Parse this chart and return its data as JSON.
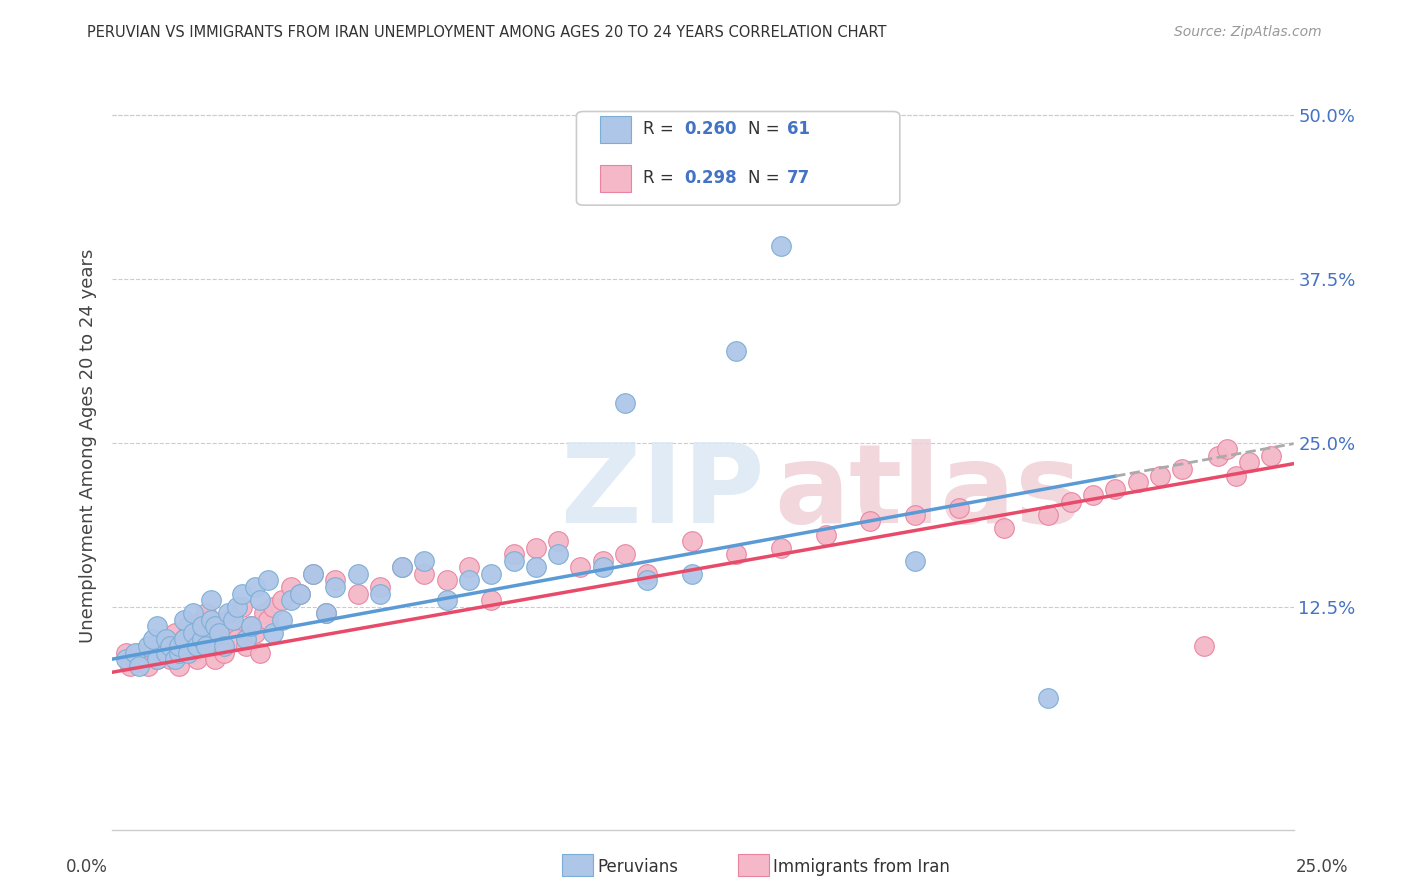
{
  "title": "PERUVIAN VS IMMIGRANTS FROM IRAN UNEMPLOYMENT AMONG AGES 20 TO 24 YEARS CORRELATION CHART",
  "source": "Source: ZipAtlas.com",
  "ylabel": "Unemployment Among Ages 20 to 24 years",
  "yticks_labels": [
    "12.5%",
    "25.0%",
    "37.5%",
    "50.0%"
  ],
  "ytick_vals": [
    0.125,
    0.25,
    0.375,
    0.5
  ],
  "xlim": [
    0.0,
    0.265
  ],
  "ylim": [
    -0.045,
    0.54
  ],
  "series1_color": "#aec6e8",
  "series2_color": "#f4b8c8",
  "series1_edge": "#7baed4",
  "series2_edge": "#e884a0",
  "line1_color": "#5b9bd5",
  "line2_color": "#e84b6a",
  "line1_intercept": 0.085,
  "line1_slope": 0.62,
  "line2_intercept": 0.075,
  "line2_slope": 0.6,
  "dashed_line_color": "#aaaaaa",
  "grid_color": "#cccccc",
  "title_color": "#333333",
  "source_color": "#999999",
  "tick_color": "#4472c4",
  "watermark_zip_color": "#dce8f5",
  "watermark_atlas_color": "#f0d0d8",
  "peruvian_x": [
    0.003,
    0.005,
    0.006,
    0.008,
    0.009,
    0.01,
    0.01,
    0.012,
    0.012,
    0.013,
    0.014,
    0.015,
    0.015,
    0.016,
    0.016,
    0.017,
    0.018,
    0.018,
    0.019,
    0.02,
    0.02,
    0.021,
    0.022,
    0.022,
    0.023,
    0.024,
    0.025,
    0.026,
    0.027,
    0.028,
    0.029,
    0.03,
    0.031,
    0.032,
    0.033,
    0.035,
    0.036,
    0.038,
    0.04,
    0.042,
    0.045,
    0.048,
    0.05,
    0.055,
    0.06,
    0.065,
    0.07,
    0.075,
    0.08,
    0.085,
    0.09,
    0.095,
    0.1,
    0.11,
    0.115,
    0.12,
    0.13,
    0.14,
    0.15,
    0.18,
    0.21
  ],
  "peruvian_y": [
    0.085,
    0.09,
    0.08,
    0.095,
    0.1,
    0.085,
    0.11,
    0.09,
    0.1,
    0.095,
    0.085,
    0.09,
    0.095,
    0.1,
    0.115,
    0.09,
    0.105,
    0.12,
    0.095,
    0.1,
    0.11,
    0.095,
    0.13,
    0.115,
    0.11,
    0.105,
    0.095,
    0.12,
    0.115,
    0.125,
    0.135,
    0.1,
    0.11,
    0.14,
    0.13,
    0.145,
    0.105,
    0.115,
    0.13,
    0.135,
    0.15,
    0.12,
    0.14,
    0.15,
    0.135,
    0.155,
    0.16,
    0.13,
    0.145,
    0.15,
    0.16,
    0.155,
    0.165,
    0.155,
    0.28,
    0.145,
    0.15,
    0.32,
    0.4,
    0.16,
    0.055
  ],
  "iran_x": [
    0.003,
    0.004,
    0.005,
    0.006,
    0.008,
    0.009,
    0.01,
    0.011,
    0.012,
    0.013,
    0.014,
    0.015,
    0.015,
    0.016,
    0.017,
    0.018,
    0.018,
    0.019,
    0.02,
    0.02,
    0.021,
    0.022,
    0.023,
    0.024,
    0.025,
    0.026,
    0.027,
    0.028,
    0.029,
    0.03,
    0.031,
    0.032,
    0.033,
    0.034,
    0.035,
    0.036,
    0.038,
    0.04,
    0.042,
    0.045,
    0.048,
    0.05,
    0.055,
    0.06,
    0.065,
    0.07,
    0.075,
    0.08,
    0.085,
    0.09,
    0.095,
    0.1,
    0.105,
    0.11,
    0.115,
    0.12,
    0.13,
    0.14,
    0.15,
    0.16,
    0.17,
    0.18,
    0.19,
    0.2,
    0.21,
    0.215,
    0.22,
    0.225,
    0.23,
    0.235,
    0.24,
    0.245,
    0.248,
    0.25,
    0.252,
    0.255,
    0.26
  ],
  "iran_y": [
    0.09,
    0.08,
    0.085,
    0.09,
    0.08,
    0.095,
    0.085,
    0.095,
    0.09,
    0.085,
    0.105,
    0.09,
    0.08,
    0.1,
    0.11,
    0.09,
    0.095,
    0.085,
    0.1,
    0.115,
    0.12,
    0.095,
    0.085,
    0.105,
    0.09,
    0.115,
    0.11,
    0.1,
    0.125,
    0.095,
    0.11,
    0.105,
    0.09,
    0.12,
    0.115,
    0.125,
    0.13,
    0.14,
    0.135,
    0.15,
    0.12,
    0.145,
    0.135,
    0.14,
    0.155,
    0.15,
    0.145,
    0.155,
    0.13,
    0.165,
    0.17,
    0.175,
    0.155,
    0.16,
    0.165,
    0.15,
    0.175,
    0.165,
    0.17,
    0.18,
    0.19,
    0.195,
    0.2,
    0.185,
    0.195,
    0.205,
    0.21,
    0.215,
    0.22,
    0.225,
    0.23,
    0.095,
    0.24,
    0.245,
    0.225,
    0.235,
    0.24
  ]
}
